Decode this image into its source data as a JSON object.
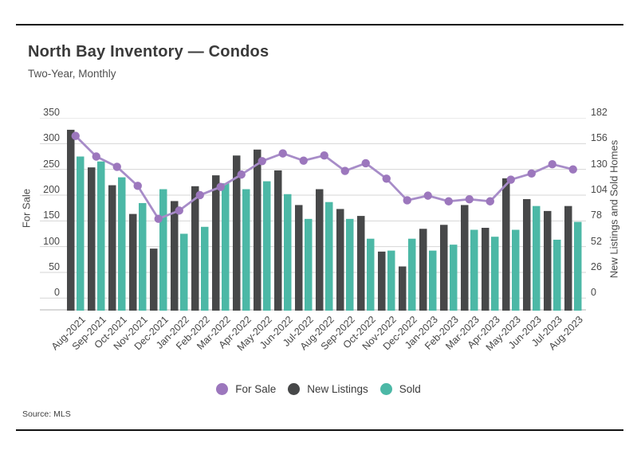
{
  "header": {
    "title": "North Bay Inventory — Condos",
    "subtitle": "Two-Year, Monthly"
  },
  "source": "Source: MLS",
  "legend": [
    {
      "label": "For Sale",
      "color": "#9c77bd"
    },
    {
      "label": "New Listings",
      "color": "#474849"
    },
    {
      "label": "Sold",
      "color": "#4cb8a6"
    }
  ],
  "colors": {
    "for_sale_line": "#a78cc8",
    "for_sale_marker": "#9c77bd",
    "new_listings_bar": "#474849",
    "sold_bar": "#4cb8a6",
    "gridline": "#d6d6d6",
    "baseline": "#c2c2c2",
    "rule": "#121212",
    "text": "#4a4a4a"
  },
  "chart_data": {
    "type": "bar",
    "subtype": "grouped-bars-with-line",
    "title": "North Bay Inventory — Condos",
    "subtitle": "Two-Year, Monthly",
    "categories": [
      "Aug-2021",
      "Sep-2021",
      "Oct-2021",
      "Nov-2021",
      "Dec-2021",
      "Jan-2022",
      "Feb-2022",
      "Mar-2022",
      "Apr-2022",
      "May-2022",
      "Jun-2022",
      "Jul-2022",
      "Aug-2022",
      "Sep-2022",
      "Oct-2022",
      "Nov-2022",
      "Dec-2022",
      "Jan-2023",
      "Feb-2023",
      "Mar-2023",
      "Apr-2023",
      "May-2023",
      "Jun-2023",
      "Jul-2023",
      "Aug-2023"
    ],
    "series": [
      {
        "name": "For Sale",
        "type": "line",
        "axis": "left",
        "values": [
          315,
          275,
          255,
          218,
          154,
          170,
          200,
          216,
          240,
          266,
          281,
          267,
          277,
          247,
          262,
          232,
          190,
          199,
          188,
          192,
          188,
          230,
          242,
          260,
          250
        ]
      },
      {
        "name": "New Listings",
        "type": "bar",
        "axis": "right",
        "values": [
          170,
          132,
          114,
          85,
          50,
          98,
          113,
          124,
          144,
          150,
          129,
          94,
          110,
          90,
          83,
          47,
          32,
          70,
          74,
          94,
          71,
          121,
          100,
          88,
          93
        ]
      },
      {
        "name": "Sold",
        "type": "bar",
        "axis": "right",
        "values": [
          143,
          138,
          122,
          96,
          110,
          65,
          72,
          116,
          110,
          118,
          105,
          80,
          97,
          80,
          60,
          48,
          60,
          48,
          54,
          69,
          62,
          69,
          93,
          59,
          77
        ]
      }
    ],
    "left_axis": {
      "label": "For Sale",
      "min": 0,
      "max": 350,
      "ticks": [
        350,
        300,
        250,
        200,
        150,
        100,
        50,
        0
      ]
    },
    "right_axis": {
      "label": "New Listings and Sold Homes",
      "min": 0,
      "max": 182,
      "ticks": [
        182,
        156,
        130,
        104,
        78,
        52,
        26,
        0
      ]
    },
    "grid": true,
    "legend_position": "bottom"
  }
}
